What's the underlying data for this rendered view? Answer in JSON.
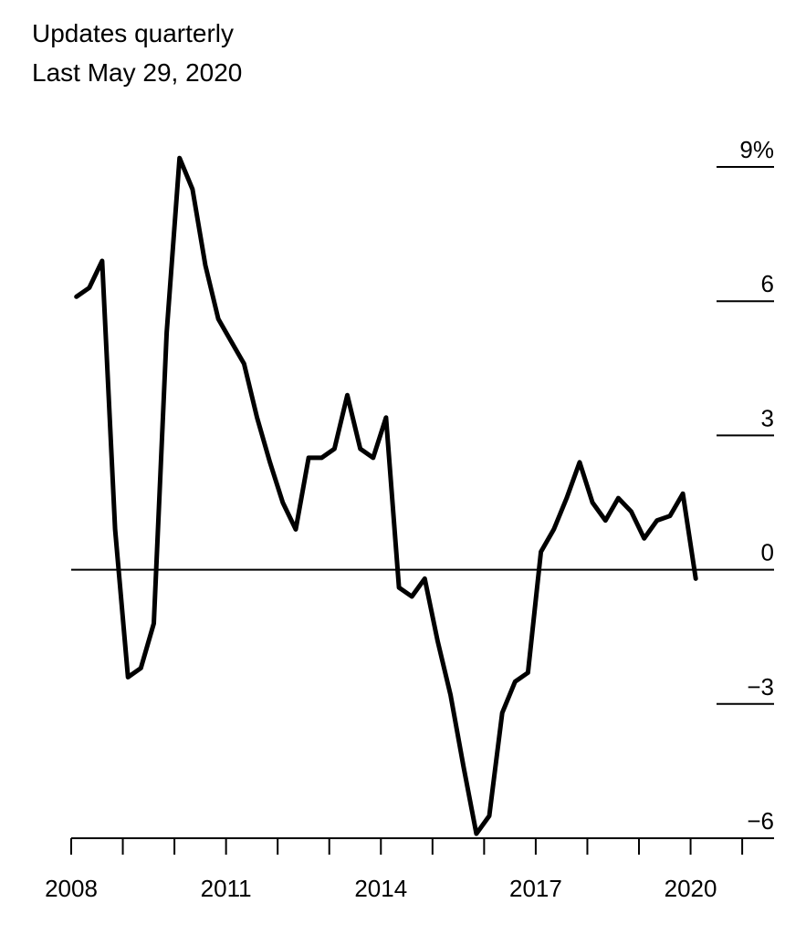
{
  "header": {
    "line1": "Updates quarterly",
    "line2": "Last May 29, 2020"
  },
  "chart_data": {
    "type": "line",
    "title": "",
    "xlabel": "",
    "ylabel": "",
    "y_unit": "%",
    "ylim": [
      -6,
      9
    ],
    "xlim": [
      2008.0,
      2021.9
    ],
    "y_ticks": [
      9,
      6,
      3,
      0,
      -3,
      -6
    ],
    "y_tick_labels": [
      "9%",
      "6",
      "3",
      "0",
      "−3",
      "−6"
    ],
    "x_ticks": [
      2008,
      2011,
      2014,
      2017,
      2020
    ],
    "x_tick_labels": [
      "2008",
      "2011",
      "2014",
      "2017",
      "2020"
    ],
    "zero_line": true,
    "grid": false,
    "color": "#000000",
    "series": [
      {
        "x": [
          2008.1,
          2008.35,
          2008.6,
          2008.85,
          2009.1,
          2009.35,
          2009.6,
          2009.85,
          2010.1,
          2010.35,
          2010.6,
          2010.85,
          2011.1,
          2011.35,
          2011.6,
          2011.85,
          2012.1,
          2012.35,
          2012.6,
          2012.85,
          2013.1,
          2013.35,
          2013.6,
          2013.85,
          2014.1,
          2014.35,
          2014.6,
          2014.85,
          2015.1,
          2015.35,
          2015.6,
          2015.85,
          2016.1,
          2016.35,
          2016.6,
          2016.85,
          2017.1,
          2017.35,
          2017.6,
          2017.85,
          2018.1,
          2018.35,
          2018.6,
          2018.85,
          2019.1,
          2019.35,
          2019.6,
          2019.85,
          2020.1
        ],
        "values": [
          6.1,
          6.3,
          6.9,
          0.9,
          -2.4,
          -2.2,
          -1.2,
          5.3,
          9.2,
          8.5,
          6.8,
          5.6,
          5.1,
          4.6,
          3.4,
          2.4,
          1.5,
          0.9,
          2.5,
          2.5,
          2.7,
          3.9,
          2.7,
          2.5,
          3.4,
          -0.4,
          -0.6,
          -0.2,
          -1.6,
          -2.8,
          -4.4,
          -5.9,
          -5.5,
          -3.2,
          -2.5,
          -2.3,
          0.4,
          0.9,
          1.6,
          2.4,
          1.5,
          1.1,
          1.6,
          1.3,
          0.7,
          1.1,
          1.2,
          1.7,
          -0.2
        ]
      }
    ]
  }
}
